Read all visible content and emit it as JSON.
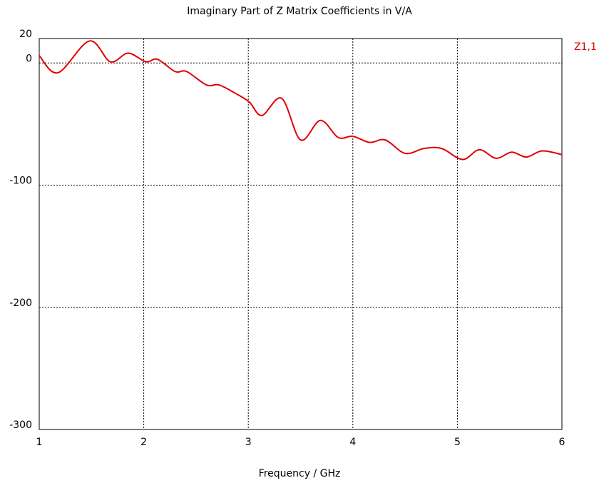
{
  "chart_data": {
    "type": "line",
    "title": "Imaginary Part of Z Matrix Coefficients in V/A",
    "x_label": "Frequency / GHz",
    "x": [
      1.0,
      1.18,
      1.48,
      1.68,
      1.85,
      2.02,
      2.13,
      2.3,
      2.41,
      2.6,
      2.72,
      2.88,
      3.01,
      3.13,
      3.32,
      3.5,
      3.69,
      3.86,
      4.0,
      4.16,
      4.31,
      4.5,
      4.68,
      4.85,
      5.05,
      5.21,
      5.37,
      5.52,
      5.66,
      5.81,
      6.0
    ],
    "series": [
      {
        "name": "Z1,1",
        "color": "#e00000",
        "values": [
          6,
          -8,
          18,
          1,
          8,
          1,
          3,
          -7,
          -7,
          -18,
          -18,
          -25,
          -32,
          -43,
          -29,
          -63,
          -47,
          -61,
          -60,
          -65,
          -63,
          -74,
          -70,
          -70,
          -79,
          -71,
          -78,
          -73,
          -77,
          -72,
          -75
        ]
      }
    ],
    "xlim": [
      1,
      6
    ],
    "xticks": [
      1,
      2,
      3,
      4,
      5,
      6
    ],
    "ylim": [
      -300,
      20
    ],
    "yticks": [
      -300,
      -200,
      -100,
      0,
      20
    ],
    "grid": true
  }
}
